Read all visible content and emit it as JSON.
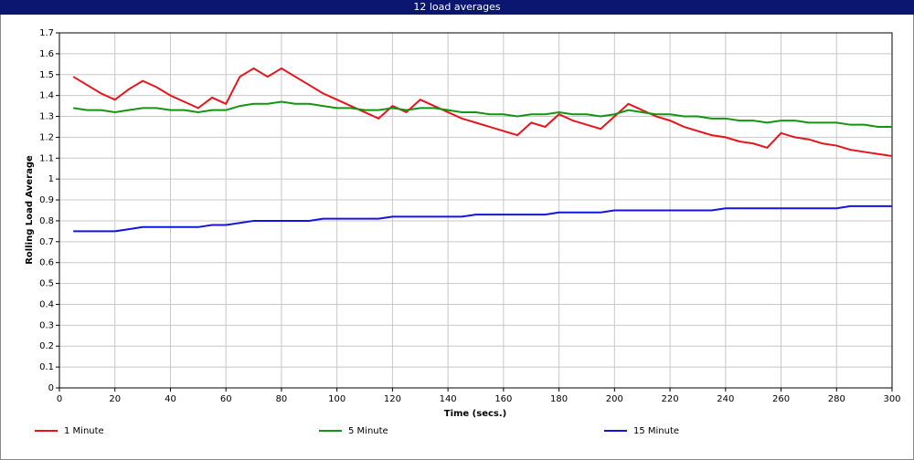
{
  "chart_data": {
    "type": "line",
    "title": "12 load averages",
    "x_label": "Time (secs.)",
    "y_label": "Rolling Load Average",
    "x": [
      5,
      10,
      15,
      20,
      25,
      30,
      35,
      40,
      45,
      50,
      55,
      60,
      65,
      70,
      75,
      80,
      85,
      90,
      95,
      100,
      105,
      110,
      115,
      120,
      125,
      130,
      135,
      140,
      145,
      150,
      155,
      160,
      165,
      170,
      175,
      180,
      185,
      190,
      195,
      200,
      205,
      210,
      215,
      220,
      225,
      230,
      235,
      240,
      245,
      250,
      255,
      260,
      265,
      270,
      275,
      280,
      285,
      290,
      295,
      300
    ],
    "series": [
      {
        "name": "1 Minute",
        "color": "#e8141c",
        "values": [
          1.49,
          1.45,
          1.41,
          1.38,
          1.43,
          1.47,
          1.44,
          1.4,
          1.37,
          1.34,
          1.39,
          1.36,
          1.49,
          1.53,
          1.49,
          1.53,
          1.49,
          1.45,
          1.41,
          1.38,
          1.35,
          1.32,
          1.29,
          1.35,
          1.32,
          1.38,
          1.35,
          1.32,
          1.29,
          1.27,
          1.25,
          1.23,
          1.21,
          1.27,
          1.25,
          1.31,
          1.28,
          1.26,
          1.24,
          1.3,
          1.36,
          1.33,
          1.3,
          1.28,
          1.25,
          1.23,
          1.21,
          1.2,
          1.18,
          1.17,
          1.15,
          1.22,
          1.2,
          1.19,
          1.17,
          1.16,
          1.14,
          1.13,
          1.12,
          1.11
        ]
      },
      {
        "name": "5 Minute",
        "color": "#129612",
        "values": [
          1.34,
          1.33,
          1.33,
          1.32,
          1.33,
          1.34,
          1.34,
          1.33,
          1.33,
          1.32,
          1.33,
          1.33,
          1.35,
          1.36,
          1.36,
          1.37,
          1.36,
          1.36,
          1.35,
          1.34,
          1.34,
          1.33,
          1.33,
          1.34,
          1.33,
          1.34,
          1.34,
          1.33,
          1.32,
          1.32,
          1.31,
          1.31,
          1.3,
          1.31,
          1.31,
          1.32,
          1.31,
          1.31,
          1.3,
          1.31,
          1.33,
          1.32,
          1.31,
          1.31,
          1.3,
          1.3,
          1.29,
          1.29,
          1.28,
          1.28,
          1.27,
          1.28,
          1.28,
          1.27,
          1.27,
          1.27,
          1.26,
          1.26,
          1.25,
          1.25
        ]
      },
      {
        "name": "15 Minute",
        "color": "#1414e0",
        "values": [
          0.75,
          0.75,
          0.75,
          0.75,
          0.76,
          0.77,
          0.77,
          0.77,
          0.77,
          0.77,
          0.78,
          0.78,
          0.79,
          0.8,
          0.8,
          0.8,
          0.8,
          0.8,
          0.81,
          0.81,
          0.81,
          0.81,
          0.81,
          0.82,
          0.82,
          0.82,
          0.82,
          0.82,
          0.82,
          0.83,
          0.83,
          0.83,
          0.83,
          0.83,
          0.83,
          0.84,
          0.84,
          0.84,
          0.84,
          0.85,
          0.85,
          0.85,
          0.85,
          0.85,
          0.85,
          0.85,
          0.85,
          0.86,
          0.86,
          0.86,
          0.86,
          0.86,
          0.86,
          0.86,
          0.86,
          0.86,
          0.87,
          0.87,
          0.87,
          0.87
        ]
      }
    ],
    "xlim": [
      0,
      300
    ],
    "xticks": [
      0,
      20,
      40,
      60,
      80,
      100,
      120,
      140,
      160,
      180,
      200,
      220,
      240,
      260,
      280,
      300
    ],
    "ylim": [
      0,
      1.7
    ],
    "yticks": [
      0,
      0.1,
      0.2,
      0.3,
      0.4,
      0.5,
      0.6,
      0.7,
      0.8,
      0.9,
      1,
      1.1,
      1.2,
      1.3,
      1.4,
      1.5,
      1.6,
      1.7
    ],
    "grid": true,
    "legend": "bottom"
  }
}
